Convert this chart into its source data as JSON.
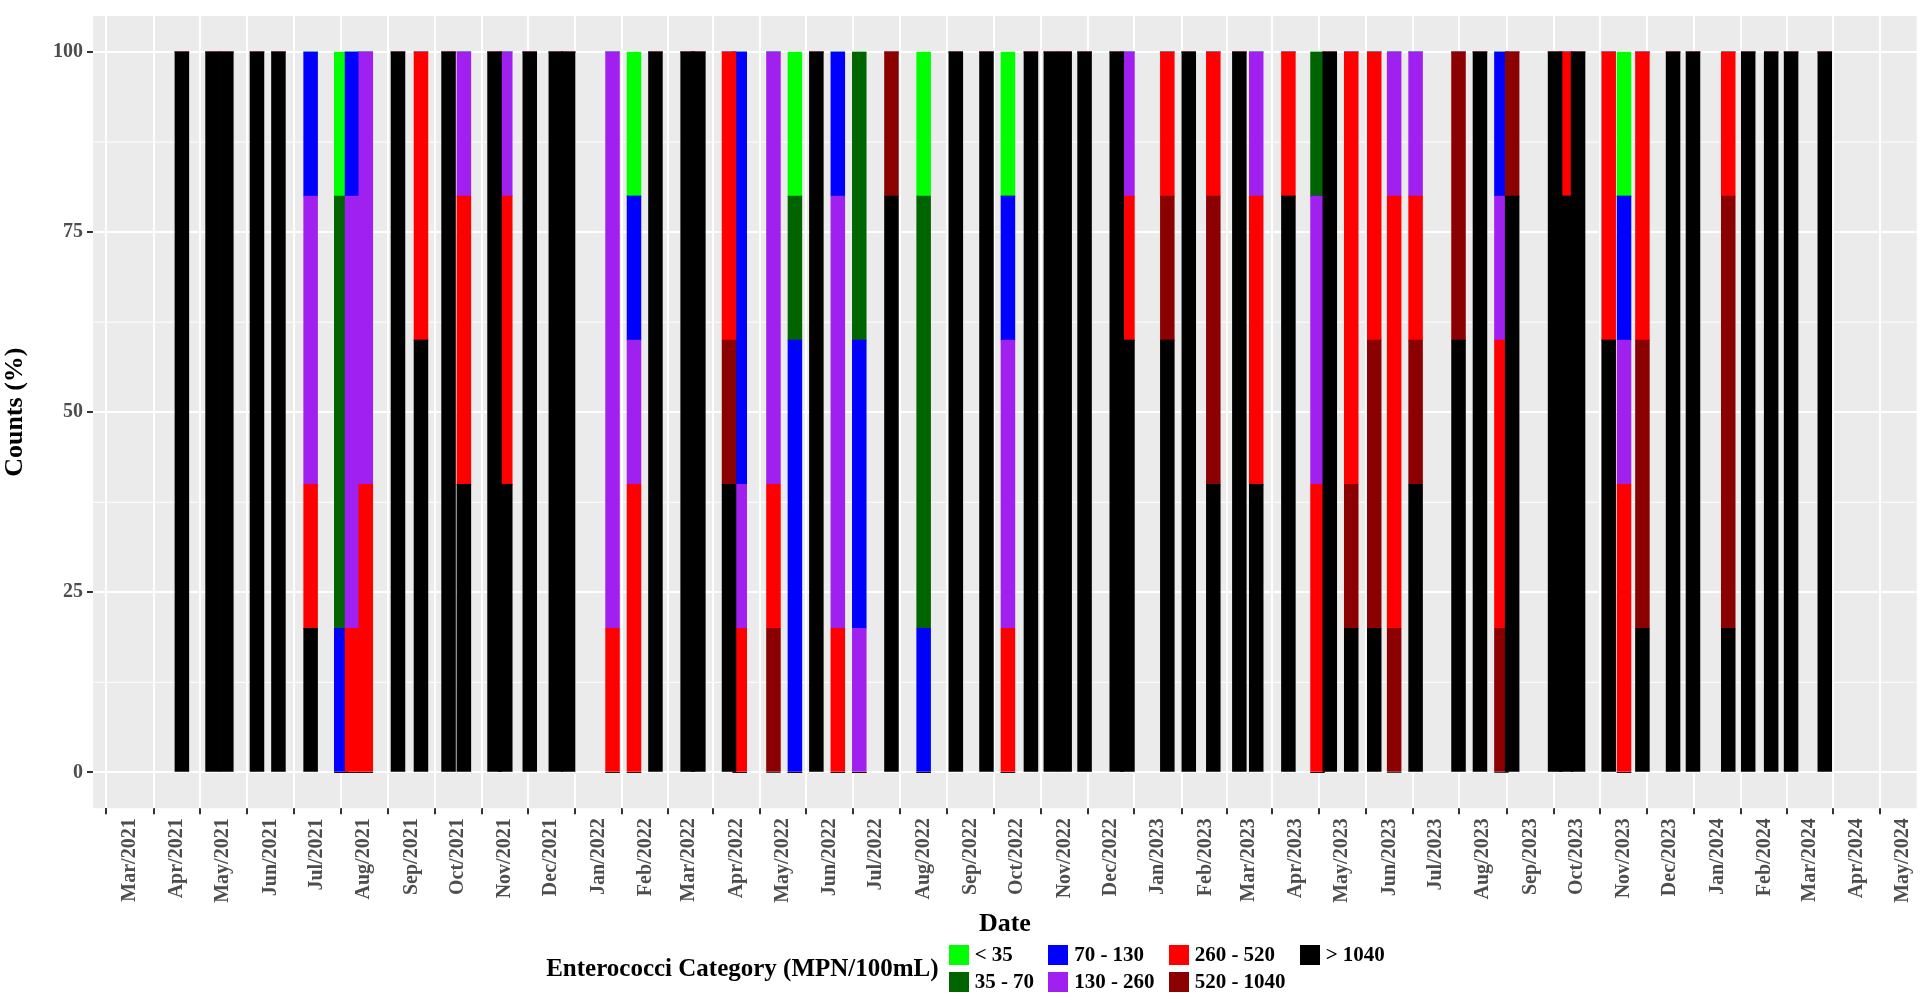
{
  "chart_data": {
    "type": "bar",
    "stacked": true,
    "xlabel": "Date",
    "ylabel": "Counts (%)",
    "legend_title": "Enterococci Category (MPN/100mL)",
    "legend": "bottom",
    "grid": true,
    "x": [
      "2021-04-04",
      "2021-04-24",
      "2021-05-03",
      "2021-05-23",
      "2021-06-06",
      "2021-06-27",
      "2021-07-17",
      "2021-07-24",
      "2021-08-02",
      "2021-08-23",
      "2021-09-07",
      "2021-09-25",
      "2021-10-05",
      "2021-10-25",
      "2021-11-01",
      "2021-11-17",
      "2021-12-04",
      "2021-12-12",
      "2022-01-10",
      "2022-01-24",
      "2022-02-07",
      "2022-02-28",
      "2022-03-07",
      "2022-03-27",
      "2022-04-03",
      "2022-04-25",
      "2022-05-09",
      "2022-05-23",
      "2022-06-06",
      "2022-06-20",
      "2022-07-11",
      "2022-08-01",
      "2022-08-22",
      "2022-09-11",
      "2022-09-25",
      "2022-10-10",
      "2022-10-23",
      "2022-11-01",
      "2022-11-14",
      "2022-12-05",
      "2022-12-12",
      "2023-01-07",
      "2023-01-21",
      "2023-02-06",
      "2023-02-23",
      "2023-03-06",
      "2023-03-27",
      "2023-04-15",
      "2023-04-23",
      "2023-05-07",
      "2023-05-22",
      "2023-06-04",
      "2023-06-18",
      "2023-07-16",
      "2023-07-30",
      "2023-08-13",
      "2023-08-20",
      "2023-09-17",
      "2023-09-24",
      "2023-10-02",
      "2023-10-22",
      "2023-11-01",
      "2023-11-13",
      "2023-12-03",
      "2023-12-16",
      "2024-01-08",
      "2024-01-21",
      "2024-02-05",
      "2024-02-18",
      "2024-03-11"
    ],
    "xlim": [
      "2021-02-05",
      "2024-05-10"
    ],
    "xticks": [
      {
        "value": "2021-03-01",
        "label": "Mar/2021"
      },
      {
        "value": "2021-04-01",
        "label": "Apr/2021"
      },
      {
        "value": "2021-05-01",
        "label": "May/2021"
      },
      {
        "value": "2021-06-01",
        "label": "Jun/2021"
      },
      {
        "value": "2021-07-01",
        "label": "Jul/2021"
      },
      {
        "value": "2021-08-01",
        "label": "Aug/2021"
      },
      {
        "value": "2021-09-01",
        "label": "Sep/2021"
      },
      {
        "value": "2021-10-01",
        "label": "Oct/2021"
      },
      {
        "value": "2021-11-01",
        "label": "Nov/2021"
      },
      {
        "value": "2021-12-01",
        "label": "Dec/2021"
      },
      {
        "value": "2022-01-01",
        "label": "Jan/2022"
      },
      {
        "value": "2022-02-01",
        "label": "Feb/2022"
      },
      {
        "value": "2022-03-01",
        "label": "Mar/2022"
      },
      {
        "value": "2022-04-01",
        "label": "Apr/2022"
      },
      {
        "value": "2022-05-01",
        "label": "May/2022"
      },
      {
        "value": "2022-06-01",
        "label": "Jun/2022"
      },
      {
        "value": "2022-07-01",
        "label": "Jul/2022"
      },
      {
        "value": "2022-08-01",
        "label": "Aug/2022"
      },
      {
        "value": "2022-09-01",
        "label": "Sep/2022"
      },
      {
        "value": "2022-10-01",
        "label": "Oct/2022"
      },
      {
        "value": "2022-11-01",
        "label": "Nov/2022"
      },
      {
        "value": "2022-12-01",
        "label": "Dec/2022"
      },
      {
        "value": "2023-01-01",
        "label": "Jan/2023"
      },
      {
        "value": "2023-02-01",
        "label": "Feb/2023"
      },
      {
        "value": "2023-03-01",
        "label": "Mar/2023"
      },
      {
        "value": "2023-04-01",
        "label": "Apr/2023"
      },
      {
        "value": "2023-05-01",
        "label": "May/2023"
      },
      {
        "value": "2023-06-01",
        "label": "Jun/2023"
      },
      {
        "value": "2023-07-01",
        "label": "Jul/2023"
      },
      {
        "value": "2023-08-01",
        "label": "Aug/2023"
      },
      {
        "value": "2023-09-01",
        "label": "Sep/2023"
      },
      {
        "value": "2023-10-01",
        "label": "Oct/2023"
      },
      {
        "value": "2023-11-01",
        "label": "Nov/2023"
      },
      {
        "value": "2023-12-01",
        "label": "Dec/2023"
      },
      {
        "value": "2024-01-01",
        "label": "Jan/2024"
      },
      {
        "value": "2024-02-01",
        "label": "Feb/2024"
      },
      {
        "value": "2024-03-01",
        "label": "Mar/2024"
      },
      {
        "value": "2024-04-01",
        "label": "Apr/2024"
      },
      {
        "value": "2024-05-01",
        "label": "May/2024"
      }
    ],
    "ylim": [
      -5,
      105
    ],
    "yticks": [
      0,
      25,
      50,
      75,
      100
    ],
    "series": [
      {
        "name": "> 1040",
        "color": "#000000",
        "values": [
          100,
          100,
          100,
          100,
          100,
          20,
          0,
          0,
          0,
          100,
          60,
          100,
          40,
          100,
          40,
          100,
          100,
          100,
          0,
          0,
          100,
          100,
          100,
          40,
          0,
          0,
          0,
          100,
          0,
          0,
          80,
          0,
          100,
          100,
          0,
          100,
          100,
          100,
          100,
          100,
          60,
          60,
          100,
          40,
          100,
          40,
          80,
          0,
          100,
          20,
          20,
          0,
          40,
          60,
          100,
          0,
          80,
          100,
          80,
          100,
          60,
          0,
          20,
          100,
          100,
          20,
          100,
          100,
          100,
          100
        ]
      },
      {
        "name": "520 - 1040",
        "color": "#8b0000",
        "values": [
          0,
          0,
          0,
          0,
          0,
          0,
          0,
          0,
          0,
          0,
          0,
          0,
          0,
          0,
          0,
          0,
          0,
          0,
          0,
          0,
          0,
          0,
          0,
          20,
          0,
          20,
          0,
          0,
          0,
          0,
          20,
          0,
          0,
          0,
          0,
          0,
          0,
          0,
          0,
          0,
          0,
          20,
          0,
          40,
          0,
          0,
          0,
          0,
          0,
          20,
          40,
          20,
          20,
          40,
          0,
          20,
          20,
          0,
          0,
          0,
          0,
          0,
          40,
          0,
          0,
          60,
          0,
          0,
          0,
          0
        ]
      },
      {
        "name": "260 - 520",
        "color": "#ff0000",
        "values": [
          0,
          0,
          0,
          0,
          0,
          20,
          0,
          20,
          40,
          0,
          40,
          0,
          40,
          0,
          40,
          0,
          0,
          0,
          20,
          40,
          0,
          0,
          0,
          40,
          20,
          20,
          0,
          0,
          20,
          0,
          0,
          0,
          0,
          0,
          20,
          0,
          0,
          0,
          0,
          0,
          20,
          20,
          0,
          20,
          0,
          40,
          20,
          40,
          0,
          60,
          40,
          60,
          20,
          0,
          0,
          40,
          0,
          0,
          20,
          0,
          40,
          40,
          40,
          0,
          0,
          20,
          0,
          0,
          0,
          0
        ]
      },
      {
        "name": "130 - 260",
        "color": "#a020f0",
        "values": [
          0,
          0,
          0,
          0,
          0,
          40,
          0,
          60,
          60,
          0,
          0,
          0,
          20,
          0,
          20,
          0,
          0,
          0,
          80,
          20,
          0,
          0,
          0,
          0,
          20,
          60,
          0,
          0,
          60,
          20,
          0,
          0,
          0,
          0,
          40,
          0,
          0,
          0,
          0,
          0,
          20,
          0,
          0,
          0,
          0,
          20,
          0,
          40,
          0,
          0,
          0,
          20,
          20,
          0,
          0,
          20,
          0,
          0,
          0,
          0,
          0,
          20,
          0,
          0,
          0,
          0,
          0,
          0,
          0,
          0
        ]
      },
      {
        "name": "70 - 130",
        "color": "#0000ff",
        "values": [
          0,
          0,
          0,
          0,
          0,
          20,
          20,
          20,
          0,
          0,
          0,
          0,
          0,
          0,
          0,
          0,
          0,
          0,
          0,
          20,
          0,
          0,
          0,
          0,
          60,
          0,
          60,
          0,
          20,
          40,
          0,
          20,
          0,
          0,
          20,
          0,
          0,
          0,
          0,
          0,
          0,
          0,
          0,
          0,
          0,
          0,
          0,
          0,
          0,
          0,
          0,
          0,
          0,
          0,
          0,
          20,
          0,
          0,
          0,
          0,
          0,
          20,
          0,
          0,
          0,
          0,
          0,
          0,
          0,
          0
        ]
      },
      {
        "name": "35 - 70",
        "color": "#006400",
        "values": [
          0,
          0,
          0,
          0,
          0,
          0,
          60,
          0,
          0,
          0,
          0,
          0,
          0,
          0,
          0,
          0,
          0,
          0,
          0,
          0,
          0,
          0,
          0,
          0,
          0,
          0,
          20,
          0,
          0,
          40,
          0,
          60,
          0,
          0,
          0,
          0,
          0,
          0,
          0,
          0,
          0,
          0,
          0,
          0,
          0,
          0,
          0,
          20,
          0,
          0,
          0,
          0,
          0,
          0,
          0,
          0,
          0,
          0,
          0,
          0,
          0,
          0,
          0,
          0,
          0,
          0,
          0,
          0,
          0,
          0
        ]
      },
      {
        "name": "< 35",
        "color": "#00ff00",
        "values": [
          0,
          0,
          0,
          0,
          0,
          0,
          20,
          0,
          0,
          0,
          0,
          0,
          0,
          0,
          0,
          0,
          0,
          0,
          0,
          20,
          0,
          0,
          0,
          0,
          0,
          0,
          20,
          0,
          0,
          0,
          0,
          20,
          0,
          0,
          20,
          0,
          0,
          0,
          0,
          0,
          0,
          0,
          0,
          0,
          0,
          0,
          0,
          0,
          0,
          0,
          0,
          0,
          0,
          0,
          0,
          0,
          0,
          0,
          0,
          0,
          0,
          20,
          0,
          0,
          0,
          0,
          0,
          0,
          0,
          0
        ]
      }
    ]
  }
}
